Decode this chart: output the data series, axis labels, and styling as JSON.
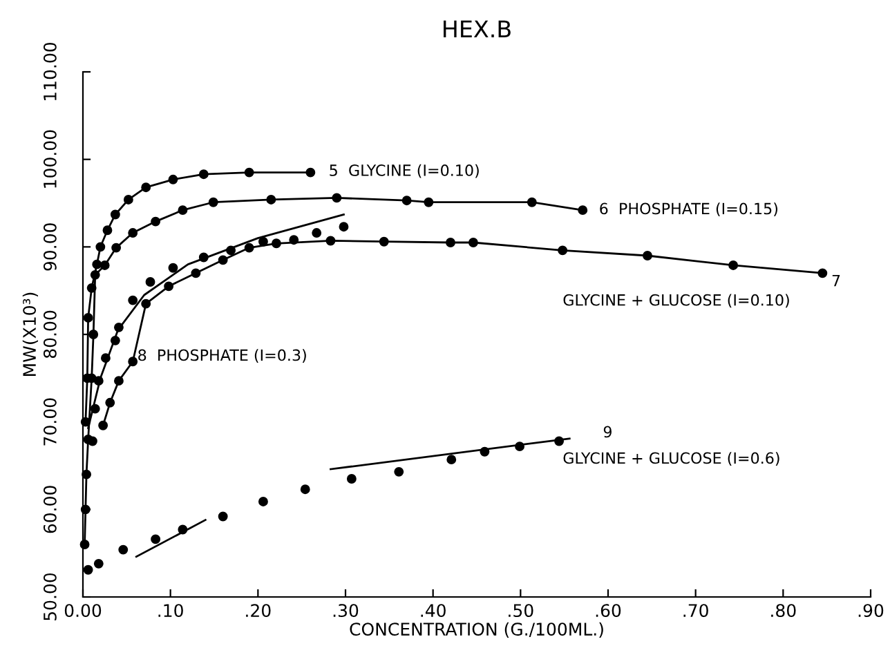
{
  "chart_data": {
    "type": "line",
    "title": "HEX.B",
    "xlabel": "CONCENTRATION (G./100ML.)",
    "ylabel": "MW(X10³)",
    "xlim": [
      0,
      0.9
    ],
    "ylim": [
      50,
      110
    ],
    "xticks": [
      {
        "value": 0,
        "label": "0.00"
      },
      {
        "value": 0.1,
        "label": ".10"
      },
      {
        "value": 0.2,
        "label": ".20"
      },
      {
        "value": 0.3,
        "label": ".30"
      },
      {
        "value": 0.4,
        "label": ".40"
      },
      {
        "value": 0.5,
        "label": ".50"
      },
      {
        "value": 0.6,
        "label": ".60"
      },
      {
        "value": 0.7,
        "label": ".70"
      },
      {
        "value": 0.8,
        "label": ".80"
      },
      {
        "value": 0.9,
        "label": ".90"
      }
    ],
    "yticks": [
      {
        "value": 50,
        "label": "50.00"
      },
      {
        "value": 60,
        "label": "60.00"
      },
      {
        "value": 70,
        "label": "70.00"
      },
      {
        "value": 80,
        "label": "80.00"
      },
      {
        "value": 90,
        "label": "90.00"
      },
      {
        "value": 100,
        "label": "100.00"
      },
      {
        "value": 110,
        "label": "110.00"
      }
    ],
    "grid": false,
    "legend": false,
    "marker": "circle",
    "line_style": "solid",
    "series": [
      {
        "type": "line",
        "color": "#000000",
        "x": [
          0.003,
          0.005,
          0.006,
          0.01,
          0.016,
          0.02,
          0.028,
          0.037,
          0.052,
          0.072,
          0.103,
          0.138,
          0.19,
          0.26
        ],
        "values": [
          70,
          75,
          81.9,
          85.3,
          88,
          90,
          91.9,
          93.7,
          95.4,
          96.8,
          97.7,
          98.3,
          98.5,
          98.5
        ]
      },
      {
        "type": "line",
        "color": "#000000",
        "x": [
          0.002,
          0.003,
          0.004,
          0.006,
          0.01,
          0.012,
          0.014,
          0.025,
          0.038,
          0.057,
          0.083,
          0.114,
          0.149,
          0.215,
          0.29,
          0.37,
          0.395,
          0.513,
          0.571
        ],
        "values": [
          56,
          60,
          64,
          68,
          75,
          80,
          86.8,
          87.9,
          89.9,
          91.6,
          92.9,
          94.2,
          95.1,
          95.4,
          95.6,
          95.3,
          95.1,
          95.1,
          94.2
        ]
      },
      {
        "type": "line",
        "color": "#000000",
        "x": [
          0.023,
          0.031,
          0.041,
          0.057,
          0.072,
          0.098,
          0.129,
          0.16,
          0.19,
          0.221,
          0.283,
          0.344,
          0.42,
          0.446,
          0.548,
          0.645,
          0.743,
          0.845
        ],
        "values": [
          69.6,
          72.2,
          74.7,
          76.9,
          83.5,
          85.5,
          87,
          88.5,
          89.9,
          90.4,
          90.7,
          90.6,
          90.5,
          90.5,
          89.6,
          89,
          87.9,
          87
        ]
      },
      {
        "type": "scatter",
        "color": "#000000",
        "x": [
          0.011,
          0.014,
          0.018,
          0.026,
          0.037,
          0.041,
          0.057,
          0.077,
          0.103,
          0.138,
          0.169,
          0.206,
          0.241,
          0.267,
          0.298
        ],
        "values": [
          67.8,
          71.5,
          74.7,
          77.3,
          79.3,
          80.8,
          83.9,
          86,
          87.6,
          88.8,
          89.6,
          90.6,
          90.8,
          91.6,
          92.3
        ]
      },
      {
        "type": "line",
        "marker": "none",
        "color": "#000000",
        "x": [
          0.006,
          0.02,
          0.04,
          0.07,
          0.12,
          0.2,
          0.298
        ],
        "values": [
          69.3,
          75,
          80.5,
          84.5,
          88,
          91,
          93.7
        ]
      },
      {
        "type": "scatter",
        "color": "#000000",
        "x": [
          0.006,
          0.018,
          0.046,
          0.083,
          0.114,
          0.16,
          0.206,
          0.254,
          0.307,
          0.361,
          0.421,
          0.459,
          0.499,
          0.544
        ],
        "values": [
          53.1,
          53.8,
          55.4,
          56.6,
          57.7,
          59.2,
          60.9,
          62.3,
          63.5,
          64.3,
          65.7,
          66.6,
          67.2,
          67.8
        ]
      },
      {
        "type": "line",
        "marker": "none",
        "color": "#000000",
        "x": [
          0.061,
          0.14
        ],
        "values": [
          54.6,
          58.8
        ]
      },
      {
        "type": "line",
        "marker": "none",
        "color": "#000000",
        "x": [
          0.283,
          0.556
        ],
        "values": [
          64.6,
          68.1
        ]
      }
    ],
    "annotations": [
      "5  GLYCINE (I=0.10)",
      "6  PHOSPHATE (I=0.15)",
      "7",
      "GLYCINE + GLUCOSE (I=0.10)",
      "8  PHOSPHATE (I=0.3)",
      "9",
      "GLYCINE + GLUCOSE (I=0.6)"
    ]
  }
}
